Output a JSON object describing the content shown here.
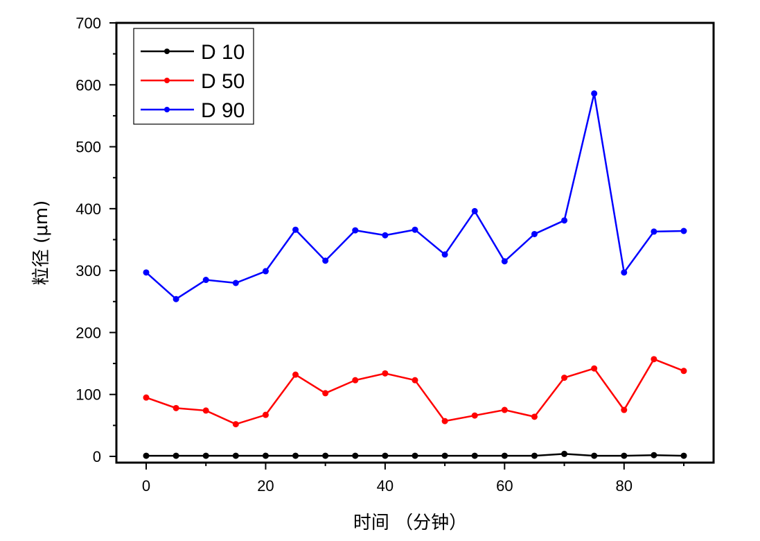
{
  "chart_data": {
    "type": "line",
    "title": "",
    "xlabel": "时间 （分钟）",
    "ylabel": "粒径 (μm)",
    "xlim": [
      -3,
      93
    ],
    "ylim": [
      0,
      700
    ],
    "x_ticks": [
      0,
      20,
      40,
      60,
      80
    ],
    "y_ticks": [
      0,
      100,
      200,
      300,
      400,
      500,
      600,
      700
    ],
    "grid": false,
    "legend_position": "upper-left",
    "x": [
      0,
      5,
      10,
      15,
      20,
      25,
      30,
      35,
      40,
      45,
      50,
      55,
      60,
      65,
      70,
      75,
      80,
      85,
      90
    ],
    "series": [
      {
        "name": "D 10",
        "color": "#000000",
        "values": [
          1,
          1,
          1,
          1,
          1,
          1,
          1,
          1,
          1,
          1,
          1,
          1,
          1,
          1,
          4,
          1,
          1,
          2,
          1
        ]
      },
      {
        "name": "D 50",
        "color": "#ff0000",
        "values": [
          95,
          78,
          74,
          52,
          67,
          132,
          102,
          123,
          134,
          123,
          57,
          66,
          75,
          64,
          127,
          142,
          75,
          157,
          138
        ]
      },
      {
        "name": "D 90",
        "color": "#0000ff",
        "values": [
          297,
          254,
          285,
          280,
          299,
          366,
          316,
          365,
          357,
          366,
          326,
          396,
          315,
          359,
          381,
          586,
          297,
          363,
          364
        ]
      }
    ]
  }
}
